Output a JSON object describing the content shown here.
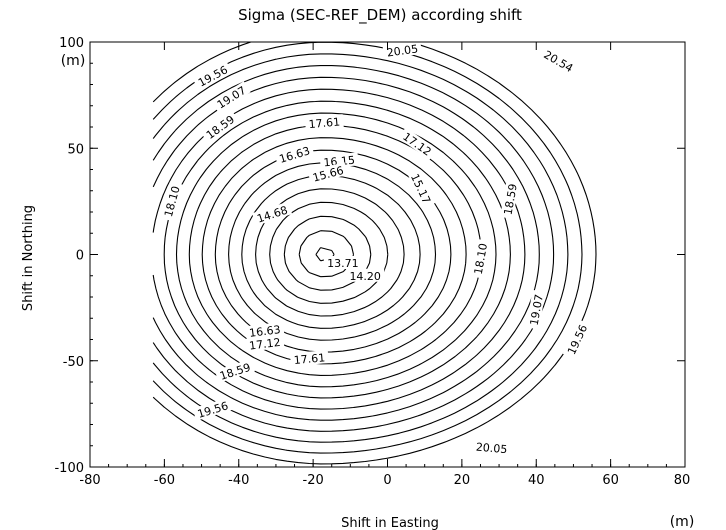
{
  "chart_data": {
    "type": "contour",
    "title": "Sigma (SEC-REF_DEM) according shift",
    "xlabel": "Shift in Easting",
    "ylabel": "Shift in Northing",
    "x_unit": "(m)",
    "y_unit": "(m)",
    "xlim": [
      -80,
      80
    ],
    "ylim": [
      -100,
      100
    ],
    "xticks": [
      -80,
      -60,
      -40,
      -20,
      0,
      20,
      40,
      60,
      80
    ],
    "yticks": [
      -100,
      -50,
      0,
      50,
      100
    ],
    "grid": false,
    "data_extent_x": [
      -63,
      63
    ],
    "minimum": {
      "x": -17,
      "y": 0,
      "value": 13.5
    },
    "contour_levels": [
      13.71,
      14.2,
      14.68,
      15.17,
      15.66,
      16.15,
      16.63,
      17.12,
      17.61,
      18.1,
      18.59,
      19.07,
      19.56,
      20.05,
      20.54
    ],
    "labels": [
      {
        "text": "20.05",
        "x": 4,
        "y": 96,
        "angle": -8
      },
      {
        "text": "20.54",
        "x": 46,
        "y": 91,
        "angle": 30
      },
      {
        "text": "19.56",
        "x": -47,
        "y": 84,
        "angle": -28
      },
      {
        "text": "19.07",
        "x": -42,
        "y": 74,
        "angle": -32
      },
      {
        "text": "18.59",
        "x": -45,
        "y": 60,
        "angle": -36
      },
      {
        "text": "17.61",
        "x": -17,
        "y": 62,
        "angle": -5
      },
      {
        "text": "17.12",
        "x": 8,
        "y": 52,
        "angle": 35
      },
      {
        "text": "16.63",
        "x": -25,
        "y": 47,
        "angle": -17
      },
      {
        "text": "16.15",
        "x": -13,
        "y": 44,
        "angle": -5
      },
      {
        "text": "15.66",
        "x": -16,
        "y": 38,
        "angle": -15
      },
      {
        "text": "15.17",
        "x": 9,
        "y": 31,
        "angle": 65
      },
      {
        "text": "14.68",
        "x": -31,
        "y": 19,
        "angle": -18
      },
      {
        "text": "18.10",
        "x": -58,
        "y": 25,
        "angle": -75
      },
      {
        "text": "18.59",
        "x": 33,
        "y": 26,
        "angle": -80
      },
      {
        "text": "13.71",
        "x": -12,
        "y": -4,
        "angle": 0
      },
      {
        "text": "14.20",
        "x": -6,
        "y": -10,
        "angle": 0
      },
      {
        "text": "18.10",
        "x": 25,
        "y": -2,
        "angle": -80
      },
      {
        "text": "19.07",
        "x": 40,
        "y": -26,
        "angle": -80
      },
      {
        "text": "19.56",
        "x": 51,
        "y": -40,
        "angle": -65
      },
      {
        "text": "16.63",
        "x": -33,
        "y": -36,
        "angle": -7
      },
      {
        "text": "17.12",
        "x": -33,
        "y": -42,
        "angle": -7
      },
      {
        "text": "17.61",
        "x": -21,
        "y": -49,
        "angle": -5
      },
      {
        "text": "18.59",
        "x": -41,
        "y": -55,
        "angle": -18
      },
      {
        "text": "19.56",
        "x": -47,
        "y": -73,
        "angle": -17
      },
      {
        "text": "20.05",
        "x": 28,
        "y": -91,
        "angle": 5
      }
    ]
  }
}
